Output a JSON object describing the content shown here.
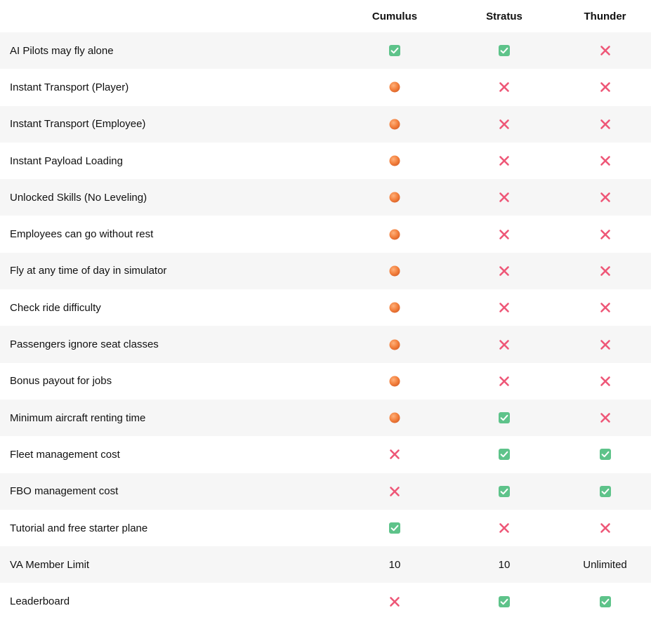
{
  "columns": [
    "Cumulus",
    "Stratus",
    "Thunder"
  ],
  "colors": {
    "check_bg": "#5ec38a",
    "check_mark": "#ffffff",
    "cross": "#ee5777",
    "dot": "#f27f3c",
    "stripe": "#f6f6f6"
  },
  "rows": [
    {
      "label": "AI Pilots may fly alone",
      "values": [
        "check",
        "check",
        "cross"
      ]
    },
    {
      "label": "Instant Transport (Player)",
      "values": [
        "dot",
        "cross",
        "cross"
      ]
    },
    {
      "label": "Instant Transport (Employee)",
      "values": [
        "dot",
        "cross",
        "cross"
      ]
    },
    {
      "label": "Instant Payload Loading",
      "values": [
        "dot",
        "cross",
        "cross"
      ]
    },
    {
      "label": "Unlocked Skills (No Leveling)",
      "values": [
        "dot",
        "cross",
        "cross"
      ]
    },
    {
      "label": "Employees can go without rest",
      "values": [
        "dot",
        "cross",
        "cross"
      ]
    },
    {
      "label": "Fly at any time of day in simulator",
      "values": [
        "dot",
        "cross",
        "cross"
      ]
    },
    {
      "label": "Check ride difficulty",
      "values": [
        "dot",
        "cross",
        "cross"
      ]
    },
    {
      "label": "Passengers ignore seat classes",
      "values": [
        "dot",
        "cross",
        "cross"
      ]
    },
    {
      "label": "Bonus payout for jobs",
      "values": [
        "dot",
        "cross",
        "cross"
      ]
    },
    {
      "label": "Minimum aircraft renting time",
      "values": [
        "dot",
        "check",
        "cross"
      ]
    },
    {
      "label": "Fleet management cost",
      "values": [
        "cross",
        "check",
        "check"
      ]
    },
    {
      "label": "FBO management cost",
      "values": [
        "cross",
        "check",
        "check"
      ]
    },
    {
      "label": "Tutorial and free starter plane",
      "values": [
        "check",
        "cross",
        "cross"
      ]
    },
    {
      "label": "VA Member Limit",
      "values": [
        "10",
        "10",
        "Unlimited"
      ]
    },
    {
      "label": "Leaderboard",
      "values": [
        "cross",
        "check",
        "check"
      ]
    }
  ]
}
